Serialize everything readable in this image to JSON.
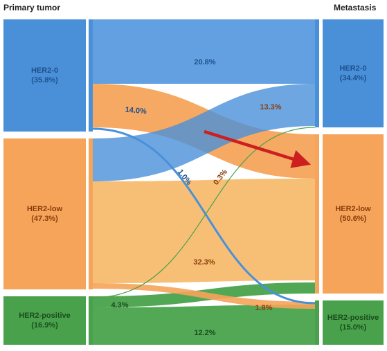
{
  "headers": {
    "left": "Primary tumor",
    "right": "Metastasis"
  },
  "colors": {
    "her2_0": "#4a90d9",
    "her2_0_text": "#1d4f8c",
    "her2_low": "#f5a45a",
    "her2_low_text": "#8a3d0c",
    "her2_positive": "#49a24b",
    "her2_positive_text": "#1b4d1e",
    "flow_zero_zero": "#5b9be0",
    "flow_low_low": "#f6b866",
    "flow_pos_pos": "#4aa34d",
    "arrow": "#cc1f1f"
  },
  "nodes": {
    "left": [
      {
        "name": "HER2-0",
        "pct": "(35.8%)"
      },
      {
        "name": "HER2-low",
        "pct": "(47.3%)"
      },
      {
        "name": "HER2-positive",
        "pct": "(16.9%)"
      }
    ],
    "right": [
      {
        "name": "HER2-0",
        "pct": "(34.4%)"
      },
      {
        "name": "HER2-low",
        "pct": "(50.6%)"
      },
      {
        "name": "HER2-positive",
        "pct": "(15.0%)"
      }
    ]
  },
  "flow_labels": {
    "zero_to_zero": "20.8%",
    "zero_to_low": "14.0%",
    "low_to_zero": "13.3%",
    "zero_to_pos": "1.0%",
    "low_to_pos": "0.3%",
    "low_to_low": "32.3%",
    "pos_to_low": "4.3%",
    "low_to_pos_bottom": "1.8%",
    "pos_to_pos": "12.2%"
  }
}
